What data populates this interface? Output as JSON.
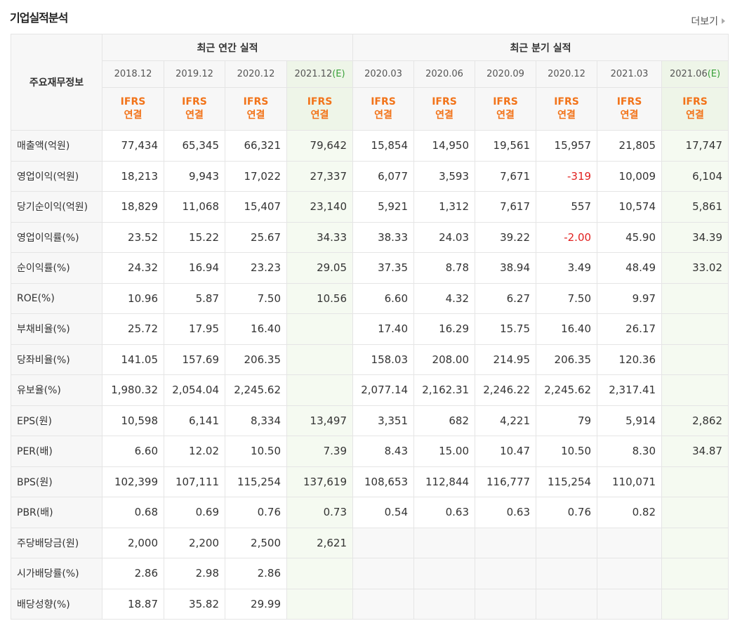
{
  "title": "기업실적분석",
  "more": "더보기",
  "table": {
    "corner": "주요재무정보",
    "groups": [
      "최근 연간 실적",
      "최근 분기 실적"
    ],
    "periods": [
      {
        "date": "2018.12"
      },
      {
        "date": "2019.12"
      },
      {
        "date": "2020.12"
      },
      {
        "date": "2021.12",
        "estimate": "(E)"
      },
      {
        "date": "2020.03"
      },
      {
        "date": "2020.06"
      },
      {
        "date": "2020.09"
      },
      {
        "date": "2020.12"
      },
      {
        "date": "2021.03"
      },
      {
        "date": "2021.06",
        "estimate": "(E)"
      }
    ],
    "standards": [
      {
        "name": "IFRS",
        "basis": "연결"
      },
      {
        "name": "IFRS",
        "basis": "연결"
      },
      {
        "name": "IFRS",
        "basis": "연결"
      },
      {
        "name": "IFRS",
        "basis": "연결"
      },
      {
        "name": "IFRS",
        "basis": "연결"
      },
      {
        "name": "IFRS",
        "basis": "연결"
      },
      {
        "name": "IFRS",
        "basis": "연결"
      },
      {
        "name": "IFRS",
        "basis": "연결"
      },
      {
        "name": "IFRS",
        "basis": "연결"
      },
      {
        "name": "IFRS",
        "basis": "연결"
      }
    ],
    "sections": [
      {
        "rows": [
          {
            "label": "매출액(억원)",
            "cells": [
              "77,434",
              "65,345",
              "66,321",
              "79,642",
              "15,854",
              "14,950",
              "19,561",
              "15,957",
              "21,805",
              "17,747"
            ]
          },
          {
            "label": "영업이익(억원)",
            "cells": [
              "18,213",
              "9,943",
              "17,022",
              "27,337",
              "6,077",
              "3,593",
              "7,671",
              "-319",
              "10,009",
              "6,104"
            ]
          },
          {
            "label": "당기순이익(억원)",
            "cells": [
              "18,829",
              "11,068",
              "15,407",
              "23,140",
              "5,921",
              "1,312",
              "7,617",
              "557",
              "10,574",
              "5,861"
            ]
          },
          {
            "label": "영업이익률(%)",
            "cells": [
              "23.52",
              "15.22",
              "25.67",
              "34.33",
              "38.33",
              "24.03",
              "39.22",
              "-2.00",
              "45.90",
              "34.39"
            ]
          },
          {
            "label": "순이익률(%)",
            "cells": [
              "24.32",
              "16.94",
              "23.23",
              "29.05",
              "37.35",
              "8.78",
              "38.94",
              "3.49",
              "48.49",
              "33.02"
            ]
          },
          {
            "label": "ROE(%)",
            "cells": [
              "10.96",
              "5.87",
              "7.50",
              "10.56",
              "6.60",
              "4.32",
              "6.27",
              "7.50",
              "9.97",
              null
            ]
          }
        ]
      },
      {
        "rows": [
          {
            "label": "부채비율(%)",
            "cells": [
              "25.72",
              "17.95",
              "16.40",
              null,
              "17.40",
              "16.29",
              "15.75",
              "16.40",
              "26.17",
              null
            ]
          },
          {
            "label": "당좌비율(%)",
            "cells": [
              "141.05",
              "157.69",
              "206.35",
              null,
              "158.03",
              "208.00",
              "214.95",
              "206.35",
              "120.36",
              null
            ]
          },
          {
            "label": "유보율(%)",
            "cells": [
              "1,980.32",
              "2,054.04",
              "2,245.62",
              null,
              "2,077.14",
              "2,162.31",
              "2,246.22",
              "2,245.62",
              "2,317.41",
              null
            ]
          }
        ]
      },
      {
        "rows": [
          {
            "label": "EPS(원)",
            "cells": [
              "10,598",
              "6,141",
              "8,334",
              "13,497",
              "3,351",
              "682",
              "4,221",
              "79",
              "5,914",
              "2,862"
            ]
          },
          {
            "label": "PER(배)",
            "cells": [
              "6.60",
              "12.02",
              "10.50",
              "7.39",
              "8.43",
              "15.00",
              "10.47",
              "10.50",
              "8.30",
              "34.87"
            ]
          },
          {
            "label": "BPS(원)",
            "cells": [
              "102,399",
              "107,111",
              "115,254",
              "137,619",
              "108,653",
              "112,844",
              "116,777",
              "115,254",
              "110,071",
              null
            ]
          },
          {
            "label": "PBR(배)",
            "cells": [
              "0.68",
              "0.69",
              "0.76",
              "0.73",
              "0.54",
              "0.63",
              "0.63",
              "0.76",
              "0.82",
              null
            ]
          }
        ]
      },
      {
        "rows": [
          {
            "label": "주당배당금(원)",
            "cells": [
              "2,000",
              "2,200",
              "2,500",
              "2,621",
              null,
              null,
              null,
              null,
              null,
              null
            ]
          },
          {
            "label": "시가배당률(%)",
            "cells": [
              "2.86",
              "2.98",
              "2.86",
              null,
              null,
              null,
              null,
              null,
              null,
              null
            ]
          },
          {
            "label": "배당성향(%)",
            "cells": [
              "18.87",
              "35.82",
              "29.99",
              null,
              null,
              null,
              null,
              null,
              null,
              null
            ]
          }
        ]
      }
    ]
  }
}
